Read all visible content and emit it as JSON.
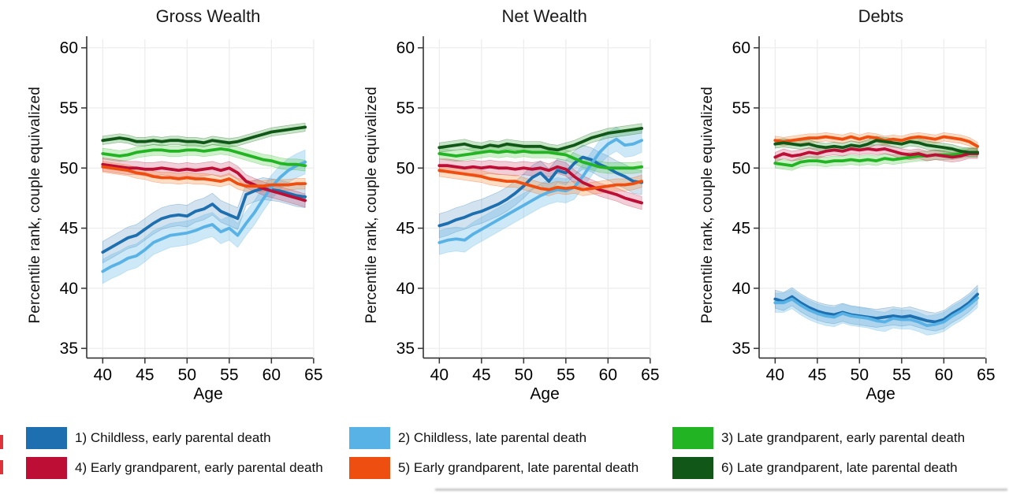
{
  "legend": {
    "items": [
      {
        "label": "1) Childless, early parental death",
        "color": "#1d6fb0"
      },
      {
        "label": "2) Childless, late parental death",
        "color": "#58b2e6"
      },
      {
        "label": "3) Late grandparent, early parental death",
        "color": "#22b422"
      },
      {
        "label": "4) Early grandparent, early parental death",
        "color": "#bd0f35"
      },
      {
        "label": "5) Early grandparent, late parental death",
        "color": "#ee4e0f"
      },
      {
        "label": "6) Late grandparent, late parental death",
        "color": "#115717"
      }
    ]
  },
  "chart_data": [
    {
      "type": "line",
      "title": "Gross Wealth",
      "xlabel": "Age",
      "ylabel": "Percentile rank, couple equivalized",
      "x_ticks": [
        40,
        45,
        50,
        55,
        60,
        65
      ],
      "y_ticks": [
        35,
        40,
        45,
        50,
        55,
        60
      ],
      "xlim": [
        38.1,
        66.7
      ],
      "ylim": [
        34.2,
        60.7
      ],
      "grid": true,
      "ages": [
        40,
        41,
        42,
        43,
        44,
        45,
        46,
        47,
        48,
        49,
        50,
        51,
        52,
        53,
        54,
        55,
        56,
        57,
        58,
        59,
        60,
        61,
        62,
        63,
        64
      ],
      "series": [
        {
          "label": "1) Childless, early parental death",
          "color": "#1d6fb0",
          "band_color": "rgba(31,115,176,0.20)",
          "band": 0.9,
          "values": [
            43.0,
            43.4,
            43.8,
            44.2,
            44.4,
            44.9,
            45.4,
            45.8,
            46.0,
            46.1,
            46.0,
            46.4,
            46.6,
            47.0,
            46.4,
            46.1,
            45.8,
            47.8,
            48.1,
            48.3,
            48.2,
            48.1,
            47.9,
            47.7,
            47.6
          ]
        },
        {
          "label": "2) Childless, late parental death",
          "color": "#58b2e6",
          "band_color": "rgba(88,178,230,0.30)",
          "band": 1.0,
          "values": [
            41.4,
            41.8,
            42.1,
            42.5,
            42.7,
            43.2,
            43.8,
            44.1,
            44.4,
            44.5,
            44.6,
            44.8,
            45.1,
            45.3,
            44.7,
            45.0,
            44.4,
            45.4,
            46.3,
            47.4,
            48.4,
            49.2,
            49.8,
            50.2,
            50.5
          ]
        },
        {
          "label": "3) Late grandparent, early parental death",
          "color": "#22b422",
          "band_color": "rgba(80,205,70,0.28)",
          "band": 0.45,
          "values": [
            51.2,
            51.1,
            51.0,
            51.1,
            51.3,
            51.4,
            51.5,
            51.5,
            51.4,
            51.4,
            51.5,
            51.5,
            51.4,
            51.5,
            51.6,
            51.5,
            51.3,
            51.1,
            50.9,
            50.7,
            50.6,
            50.4,
            50.3,
            50.3,
            50.2
          ]
        },
        {
          "label": "4) Early grandparent, early parental death",
          "color": "#bd0f35",
          "band_color": "rgba(205,60,100,0.25)",
          "band": 0.55,
          "values": [
            50.3,
            50.2,
            50.1,
            50.0,
            50.0,
            49.9,
            49.9,
            50.0,
            49.9,
            49.8,
            49.9,
            49.8,
            49.9,
            50.0,
            49.8,
            50.0,
            49.6,
            48.9,
            48.6,
            48.3,
            48.1,
            47.9,
            47.7,
            47.5,
            47.3
          ]
        },
        {
          "label": "5) Early grandparent, late parental death",
          "color": "#ee4e0f",
          "band_color": "rgba(250,150,70,0.32)",
          "band": 0.45,
          "values": [
            50.1,
            50.0,
            49.9,
            49.8,
            49.6,
            49.5,
            49.3,
            49.2,
            49.2,
            49.1,
            49.2,
            49.1,
            49.1,
            49.0,
            48.9,
            49.1,
            48.7,
            48.5,
            48.5,
            48.5,
            48.6,
            48.6,
            48.6,
            48.7,
            48.7
          ]
        },
        {
          "label": "6) Late grandparent, late parental death",
          "color": "#115717",
          "band_color": "rgba(70,170,70,0.30)",
          "band": 0.35,
          "values": [
            52.3,
            52.4,
            52.5,
            52.4,
            52.2,
            52.2,
            52.3,
            52.2,
            52.3,
            52.3,
            52.2,
            52.2,
            52.1,
            52.3,
            52.2,
            52.1,
            52.2,
            52.4,
            52.6,
            52.8,
            53.0,
            53.1,
            53.2,
            53.3,
            53.4
          ]
        }
      ]
    },
    {
      "type": "line",
      "title": "Net Wealth",
      "xlabel": "Age",
      "ylabel": "Percentile rank, couple equivalized",
      "x_ticks": [
        40,
        45,
        50,
        55,
        60,
        65
      ],
      "y_ticks": [
        35,
        40,
        45,
        50,
        55,
        60
      ],
      "xlim": [
        38.1,
        66.7
      ],
      "ylim": [
        34.2,
        60.7
      ],
      "grid": true,
      "ages": [
        40,
        41,
        42,
        43,
        44,
        45,
        46,
        47,
        48,
        49,
        50,
        51,
        52,
        53,
        54,
        55,
        56,
        57,
        58,
        59,
        60,
        61,
        62,
        63,
        64
      ],
      "series": [
        {
          "label": "1) Childless, early parental death",
          "color": "#1d6fb0",
          "band_color": "rgba(31,115,176,0.20)",
          "band": 1.0,
          "values": [
            45.2,
            45.4,
            45.7,
            45.9,
            46.2,
            46.4,
            46.7,
            47.0,
            47.4,
            47.9,
            48.5,
            49.2,
            49.6,
            48.9,
            49.8,
            49.6,
            50.4,
            50.9,
            50.7,
            50.3,
            50.0,
            49.6,
            49.3,
            48.9,
            48.8
          ]
        },
        {
          "label": "2) Childless, late parental death",
          "color": "#58b2e6",
          "band_color": "rgba(88,178,230,0.30)",
          "band": 1.0,
          "values": [
            43.8,
            44.0,
            44.1,
            44.0,
            44.5,
            44.9,
            45.3,
            45.7,
            46.1,
            46.5,
            46.9,
            47.3,
            47.7,
            48.0,
            48.2,
            48.1,
            48.4,
            49.3,
            50.3,
            51.3,
            52.0,
            52.4,
            51.9,
            52.0,
            52.3
          ]
        },
        {
          "label": "3) Late grandparent, early parental death",
          "color": "#22b422",
          "band_color": "rgba(80,205,70,0.28)",
          "band": 0.45,
          "values": [
            51.2,
            51.1,
            51.0,
            51.1,
            51.2,
            51.3,
            51.4,
            51.3,
            51.4,
            51.3,
            51.4,
            51.3,
            51.3,
            51.3,
            51.2,
            51.1,
            50.8,
            50.5,
            50.3,
            50.1,
            50.0,
            50.0,
            50.0,
            50.0,
            50.1
          ]
        },
        {
          "label": "4) Early grandparent, early parental death",
          "color": "#bd0f35",
          "band_color": "rgba(205,60,100,0.25)",
          "band": 0.55,
          "values": [
            50.2,
            50.2,
            50.1,
            50.0,
            50.1,
            50.0,
            50.1,
            50.0,
            50.0,
            49.9,
            50.0,
            49.9,
            50.0,
            49.8,
            50.1,
            49.9,
            49.3,
            48.8,
            48.5,
            48.2,
            48.0,
            47.8,
            47.5,
            47.3,
            47.1
          ]
        },
        {
          "label": "5) Early grandparent, late parental death",
          "color": "#ee4e0f",
          "band_color": "rgba(250,150,70,0.32)",
          "band": 0.5,
          "values": [
            49.8,
            49.7,
            49.6,
            49.5,
            49.4,
            49.3,
            49.1,
            49.0,
            48.9,
            48.9,
            48.7,
            48.5,
            48.3,
            48.2,
            48.4,
            48.3,
            48.4,
            48.2,
            48.3,
            48.4,
            48.5,
            48.6,
            48.6,
            48.7,
            48.9
          ]
        },
        {
          "label": "6) Late grandparent, late parental death",
          "color": "#115717",
          "band_color": "rgba(70,170,70,0.30)",
          "band": 0.4,
          "values": [
            51.7,
            51.8,
            51.9,
            52.0,
            51.8,
            51.7,
            51.9,
            51.8,
            52.0,
            51.9,
            51.8,
            51.8,
            51.8,
            51.6,
            51.5,
            51.7,
            51.9,
            52.2,
            52.5,
            52.7,
            52.9,
            53.0,
            53.1,
            53.2,
            53.3
          ]
        }
      ]
    },
    {
      "type": "line",
      "title": "Debts",
      "xlabel": "Age",
      "ylabel": "Percentile rank, couple equivalized",
      "x_ticks": [
        40,
        45,
        50,
        55,
        60,
        65
      ],
      "y_ticks": [
        35,
        40,
        45,
        50,
        55,
        60
      ],
      "xlim": [
        38.1,
        66.7
      ],
      "ylim": [
        34.2,
        60.7
      ],
      "grid": true,
      "ages": [
        40,
        41,
        42,
        43,
        44,
        45,
        46,
        47,
        48,
        49,
        50,
        51,
        52,
        53,
        54,
        55,
        56,
        57,
        58,
        59,
        60,
        61,
        62,
        63,
        64
      ],
      "series": [
        {
          "label": "1) Childless, early parental death",
          "color": "#1d6fb0",
          "band_color": "rgba(31,115,176,0.20)",
          "band": 0.75,
          "values": [
            39.1,
            38.9,
            39.3,
            38.8,
            38.4,
            38.1,
            37.9,
            37.8,
            38.0,
            37.8,
            37.7,
            37.6,
            37.5,
            37.6,
            37.7,
            37.6,
            37.7,
            37.5,
            37.3,
            37.2,
            37.4,
            37.9,
            38.3,
            38.8,
            39.5
          ]
        },
        {
          "label": "2) Childless, late parental death",
          "color": "#58b2e6",
          "band_color": "rgba(88,178,230,0.30)",
          "band": 0.8,
          "values": [
            38.8,
            38.8,
            39.1,
            38.6,
            38.2,
            37.9,
            37.7,
            37.6,
            37.9,
            37.7,
            37.6,
            37.5,
            37.3,
            37.2,
            37.5,
            37.4,
            37.4,
            37.2,
            36.9,
            37.0,
            37.2,
            37.7,
            38.1,
            38.6,
            39.2
          ]
        },
        {
          "label": "3) Late grandparent, early parental death",
          "color": "#22b422",
          "band_color": "rgba(80,205,70,0.28)",
          "band": 0.4,
          "values": [
            50.4,
            50.3,
            50.2,
            50.5,
            50.6,
            50.6,
            50.5,
            50.6,
            50.6,
            50.7,
            50.6,
            50.7,
            50.6,
            50.8,
            50.7,
            50.8,
            50.9,
            51.0,
            51.0,
            51.1,
            51.1,
            51.1,
            51.2,
            51.3,
            51.3
          ]
        },
        {
          "label": "4) Early grandparent, early parental death",
          "color": "#bd0f35",
          "band_color": "rgba(205,60,100,0.25)",
          "band": 0.4,
          "values": [
            50.9,
            51.2,
            51.0,
            51.1,
            51.3,
            51.2,
            51.4,
            51.5,
            51.4,
            51.6,
            51.5,
            51.6,
            51.5,
            51.6,
            51.4,
            51.2,
            51.1,
            51.2,
            51.0,
            51.1,
            51.0,
            50.9,
            51.0,
            51.2,
            51.2
          ]
        },
        {
          "label": "5) Early grandparent, late parental death",
          "color": "#ee4e0f",
          "band_color": "rgba(250,150,70,0.32)",
          "band": 0.35,
          "values": [
            52.3,
            52.2,
            52.3,
            52.4,
            52.5,
            52.5,
            52.6,
            52.5,
            52.4,
            52.6,
            52.4,
            52.6,
            52.5,
            52.3,
            52.4,
            52.3,
            52.5,
            52.6,
            52.5,
            52.4,
            52.6,
            52.5,
            52.4,
            52.2,
            51.8
          ]
        },
        {
          "label": "6) Late grandparent, late parental death",
          "color": "#115717",
          "band_color": "rgba(70,170,70,0.30)",
          "band": 0.35,
          "values": [
            52.0,
            52.1,
            52.0,
            51.9,
            52.0,
            51.8,
            51.7,
            51.8,
            51.7,
            51.9,
            51.8,
            52.0,
            52.3,
            52.2,
            52.1,
            52.0,
            52.2,
            52.1,
            51.9,
            51.8,
            51.7,
            51.6,
            51.4,
            51.3,
            51.3
          ]
        }
      ]
    }
  ]
}
